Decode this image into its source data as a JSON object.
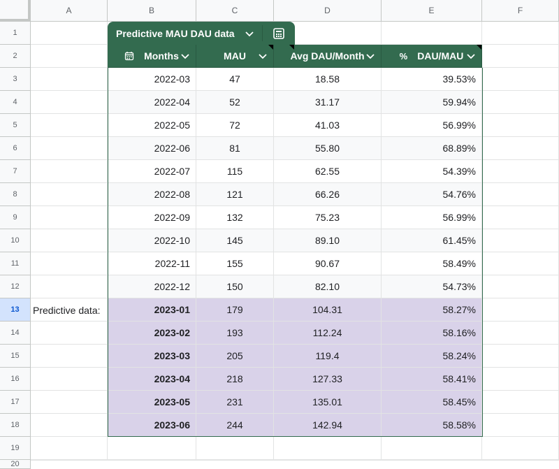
{
  "columns": [
    "A",
    "B",
    "C",
    "D",
    "E",
    "F"
  ],
  "row_numbers": [
    1,
    2,
    3,
    4,
    5,
    6,
    7,
    8,
    9,
    10,
    11,
    12,
    13,
    14,
    15,
    16,
    17,
    18,
    19,
    20
  ],
  "table": {
    "name": "Predictive MAU  DAU data",
    "headers": [
      "Months",
      "MAU",
      "Avg DAU/Month",
      "DAU/MAU"
    ],
    "percent_prefix": "%",
    "header_color": "#336b4f",
    "stripe_color": "#f8f9fa",
    "highlight_color": "#d9d2e9",
    "rows": [
      {
        "month": "2022-03",
        "mau": "47",
        "dau": "18.58",
        "ratio": "39.53%"
      },
      {
        "month": "2022-04",
        "mau": "52",
        "dau": "31.17",
        "ratio": "59.94%"
      },
      {
        "month": "2022-05",
        "mau": "72",
        "dau": "41.03",
        "ratio": "56.99%"
      },
      {
        "month": "2022-06",
        "mau": "81",
        "dau": "55.80",
        "ratio": "68.89%"
      },
      {
        "month": "2022-07",
        "mau": "115",
        "dau": "62.55",
        "ratio": "54.39%"
      },
      {
        "month": "2022-08",
        "mau": "121",
        "dau": "66.26",
        "ratio": "54.76%"
      },
      {
        "month": "2022-09",
        "mau": "132",
        "dau": "75.23",
        "ratio": "56.99%"
      },
      {
        "month": "2022-10",
        "mau": "145",
        "dau": "89.10",
        "ratio": "61.45%"
      },
      {
        "month": "2022-11",
        "mau": "155",
        "dau": "90.67",
        "ratio": "58.49%"
      },
      {
        "month": "2022-12",
        "mau": "150",
        "dau": "82.10",
        "ratio": "54.73%"
      },
      {
        "month": "2023-01",
        "mau": "179",
        "dau": "104.31",
        "ratio": "58.27%"
      },
      {
        "month": "2023-02",
        "mau": "193",
        "dau": "112.24",
        "ratio": "58.16%"
      },
      {
        "month": "2023-03",
        "mau": "205",
        "dau": "119.4",
        "ratio": "58.24%"
      },
      {
        "month": "2023-04",
        "mau": "218",
        "dau": "127.33",
        "ratio": "58.41%"
      },
      {
        "month": "2023-05",
        "mau": "231",
        "dau": "135.01",
        "ratio": "58.45%"
      },
      {
        "month": "2023-06",
        "mau": "244",
        "dau": "142.94",
        "ratio": "58.58%"
      }
    ]
  },
  "side_label": "Predictive data:",
  "selected_row": 13,
  "icons": {
    "chevron": "chevron-down-icon",
    "calendar": "calendar-icon",
    "table": "table-options-icon"
  }
}
